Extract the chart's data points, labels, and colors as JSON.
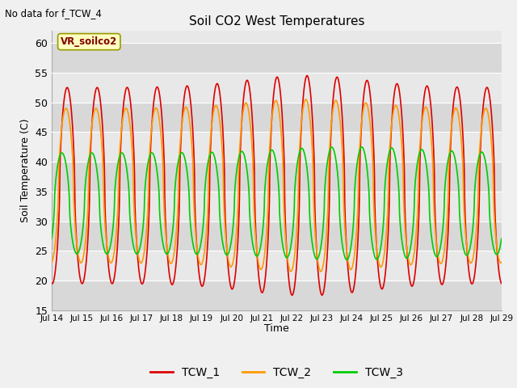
{
  "title": "Soil CO2 West Temperatures",
  "no_data_label": "No data for f_TCW_4",
  "vr_label": "VR_soilco2",
  "ylabel": "Soil Temperature (C)",
  "xlabel": "Time",
  "ylim": [
    15,
    62
  ],
  "yticks": [
    15,
    20,
    25,
    30,
    35,
    40,
    45,
    50,
    55,
    60
  ],
  "xtick_labels": [
    "Jul 14",
    "Jul 15",
    "Jul 16",
    "Jul 17",
    "Jul 18",
    "Jul 19",
    "Jul 20",
    "Jul 21",
    "Jul 22",
    "Jul 23",
    "Jul 24",
    "Jul 25",
    "Jul 26",
    "Jul 27",
    "Jul 28",
    "Jul 29"
  ],
  "tcw1_color": "#dd0000",
  "tcw2_color": "#ff9900",
  "tcw3_color": "#00cc00",
  "legend_entries": [
    "TCW_1",
    "TCW_2",
    "TCW_3"
  ],
  "fig_bg_color": "#f0f0f0",
  "plot_bg_color": "#e8e8e8",
  "band_color_light": "#dcdcdc",
  "band_color_dark": "#e8e8e8"
}
